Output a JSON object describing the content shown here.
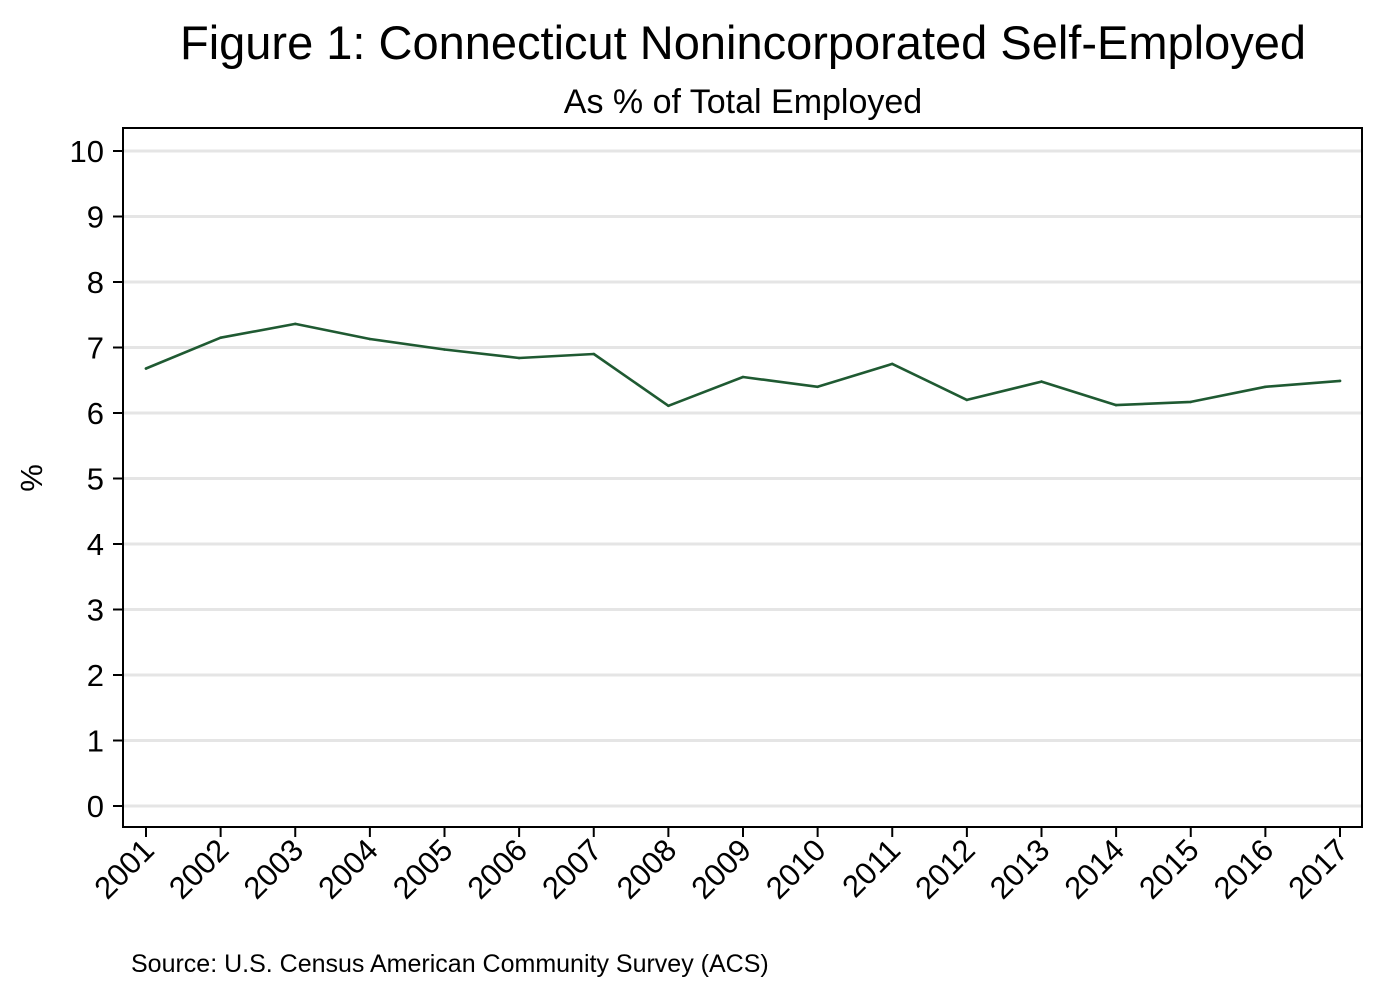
{
  "chart_data": {
    "type": "line",
    "title": "Figure 1: Connecticut Nonincorporated Self-Employed",
    "subtitle": "As % of Total Employed",
    "xlabel": "",
    "ylabel": "%",
    "source": "Source: U.S. Census American Community Survey (ACS)",
    "x": [
      "2001",
      "2002",
      "2003",
      "2004",
      "2005",
      "2006",
      "2007",
      "2008",
      "2009",
      "2010",
      "2011",
      "2012",
      "2013",
      "2014",
      "2015",
      "2016",
      "2017"
    ],
    "series": [
      {
        "values": [
          6.68,
          7.15,
          7.36,
          7.13,
          6.97,
          6.84,
          6.9,
          6.11,
          6.55,
          6.4,
          6.75,
          6.2,
          6.48,
          6.12,
          6.17,
          6.4,
          6.49
        ],
        "color": "#1f5a32"
      }
    ],
    "yticks": [
      "0",
      "1",
      "2",
      "3",
      "4",
      "5",
      "6",
      "7",
      "8",
      "9",
      "10"
    ],
    "ylim": [
      0,
      10
    ],
    "grid": true,
    "legend": "none"
  }
}
